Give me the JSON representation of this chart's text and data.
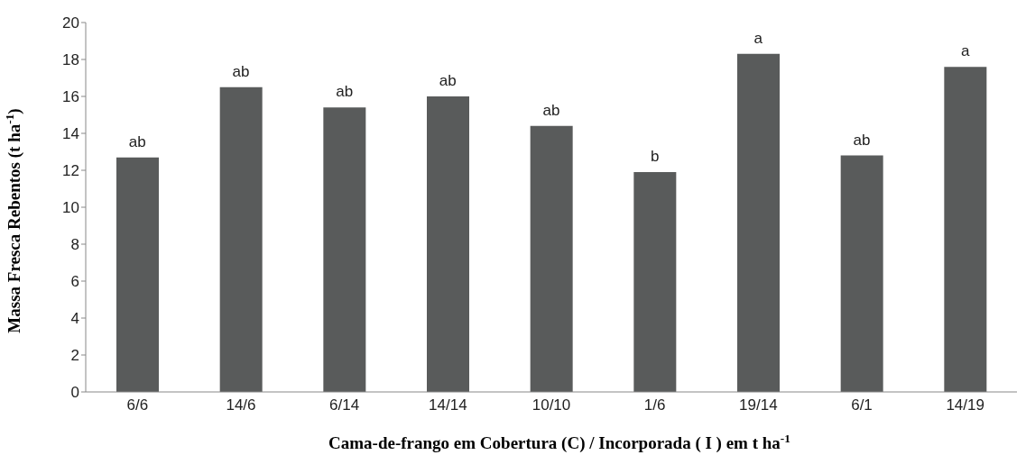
{
  "chart_data": {
    "type": "bar",
    "xlabel": "Cama-de-frango em Cobertura (C) / Incorporada ( I ) em t ha$^{-1}$",
    "ylabel": "Massa Fresca Rebentos (t ha$^{-1}$)",
    "categories": [
      "6/6",
      "14/6",
      "6/14",
      "14/14",
      "10/10",
      "1/6",
      "19/14",
      "6/1",
      "14/19"
    ],
    "values": [
      12.7,
      16.5,
      15.4,
      16.0,
      14.4,
      11.9,
      18.3,
      12.8,
      17.6
    ],
    "color": "#595b5b",
    "ylim": [
      0,
      20
    ],
    "yticks": [
      0,
      2,
      4,
      6,
      8,
      10,
      12,
      14,
      16,
      18,
      20
    ],
    "grid": false,
    "annotations": [
      {
        "text": "ab",
        "x": "6/6",
        "y": 12.7
      },
      {
        "text": "ab",
        "x": "14/6",
        "y": 16.5
      },
      {
        "text": "ab",
        "x": "6/14",
        "y": 15.4
      },
      {
        "text": "ab",
        "x": "14/14",
        "y": 16.0
      },
      {
        "text": "ab",
        "x": "10/10",
        "y": 14.4
      },
      {
        "text": "b",
        "x": "1/6",
        "y": 11.9
      },
      {
        "text": "a",
        "x": "19/14",
        "y": 18.3
      },
      {
        "text": "ab",
        "x": "6/1",
        "y": 12.8
      },
      {
        "text": "a",
        "x": "14/19",
        "y": 17.6
      }
    ]
  }
}
